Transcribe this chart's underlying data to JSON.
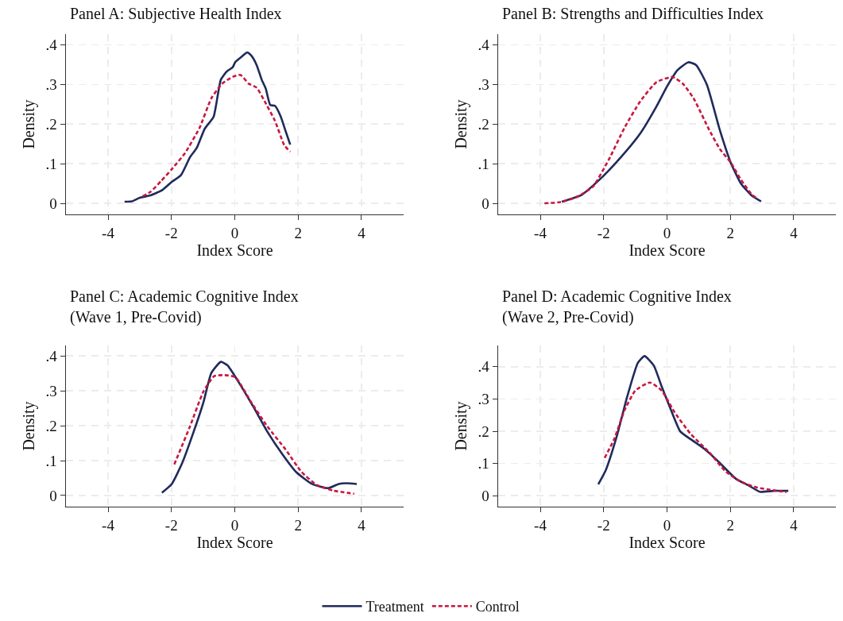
{
  "chart_data": [
    {
      "type": "line",
      "title": "Panel A: Subjective Health Index",
      "xlabel": "Index Score",
      "ylabel": "Density",
      "xlim": [
        -5.33,
        5.33
      ],
      "ylim": [
        -0.028,
        0.427
      ],
      "xticks": [
        -4,
        -2,
        0,
        2,
        4
      ],
      "yticks": [
        {
          "value": 0,
          "label": "0"
        },
        {
          "value": 0.1,
          "label": ".1"
        },
        {
          "value": 0.2,
          "label": ".2"
        },
        {
          "value": 0.3,
          "label": ".3"
        },
        {
          "value": 0.4,
          "label": ".4"
        }
      ],
      "grid": true,
      "series": [
        {
          "color": "#1f2b5b",
          "line_style": "solid",
          "x": [
            -3.48,
            -3.25,
            -3.0,
            -2.66,
            -2.28,
            -1.99,
            -1.7,
            -1.41,
            -1.2,
            -0.95,
            -0.67,
            -0.59,
            -0.44,
            -0.25,
            -0.07,
            0.02,
            0.23,
            0.39,
            0.52,
            0.69,
            0.85,
            0.98,
            1.12,
            1.27,
            1.44,
            1.61,
            1.75
          ],
          "values": [
            0.004,
            0.005,
            0.014,
            0.02,
            0.034,
            0.054,
            0.071,
            0.117,
            0.14,
            0.188,
            0.218,
            0.248,
            0.312,
            0.333,
            0.343,
            0.357,
            0.371,
            0.381,
            0.373,
            0.349,
            0.312,
            0.289,
            0.248,
            0.246,
            0.221,
            0.181,
            0.148
          ]
        },
        {
          "color": "#c8173f",
          "line_style": "dashed",
          "x": [
            -2.91,
            -2.66,
            -2.33,
            -1.99,
            -1.57,
            -1.11,
            -0.74,
            -0.4,
            -0.07,
            0.18,
            0.44,
            0.69,
            0.94,
            1.27,
            1.56,
            1.75
          ],
          "values": [
            0.018,
            0.029,
            0.056,
            0.086,
            0.127,
            0.191,
            0.265,
            0.302,
            0.319,
            0.324,
            0.302,
            0.292,
            0.258,
            0.208,
            0.147,
            0.13
          ]
        }
      ]
    },
    {
      "type": "line",
      "title": "Panel B: Strengths and Difficulties Index",
      "xlabel": "Index Score",
      "ylabel": "Density",
      "xlim": [
        -5.33,
        5.33
      ],
      "ylim": [
        -0.028,
        0.427
      ],
      "xticks": [
        -4,
        -2,
        0,
        2,
        4
      ],
      "yticks": [
        {
          "value": 0,
          "label": "0"
        },
        {
          "value": 0.1,
          "label": ".1"
        },
        {
          "value": 0.2,
          "label": ".2"
        },
        {
          "value": 0.3,
          "label": ".3"
        },
        {
          "value": 0.4,
          "label": ".4"
        }
      ],
      "grid": true,
      "series": [
        {
          "color": "#1f2b5b",
          "line_style": "solid",
          "x": [
            -3.32,
            -2.68,
            -2.01,
            -1.34,
            -0.84,
            -0.33,
            0,
            0.33,
            0.67,
            0.92,
            1.26,
            1.67,
            2.01,
            2.34,
            2.68,
            2.97
          ],
          "values": [
            0.004,
            0.022,
            0.069,
            0.127,
            0.177,
            0.245,
            0.295,
            0.336,
            0.356,
            0.349,
            0.299,
            0.184,
            0.103,
            0.049,
            0.019,
            0.005
          ]
        },
        {
          "color": "#c8173f",
          "line_style": "dashed",
          "x": [
            -3.87,
            -3.37,
            -2.85,
            -2.34,
            -1.84,
            -1.34,
            -0.84,
            -0.33,
            0.17,
            0.5,
            0.84,
            1.34,
            1.67,
            2.01,
            2.34,
            2.68,
            2.85
          ],
          "values": [
            0.0,
            0.003,
            0.016,
            0.042,
            0.11,
            0.191,
            0.258,
            0.306,
            0.319,
            0.302,
            0.265,
            0.184,
            0.137,
            0.103,
            0.059,
            0.022,
            0.012
          ]
        }
      ]
    },
    {
      "type": "line",
      "title": "Panel C: Academic Cognitive Index\n(Wave 1, Pre-Covid)",
      "xlabel": "Index Score",
      "ylabel": "Density",
      "xlim": [
        -5.33,
        5.33
      ],
      "ylim": [
        -0.032,
        0.43
      ],
      "xticks": [
        -4,
        -2,
        0,
        2,
        4
      ],
      "yticks": [
        {
          "value": 0,
          "label": "0"
        },
        {
          "value": 0.1,
          "label": ".1"
        },
        {
          "value": 0.2,
          "label": ".2"
        },
        {
          "value": 0.3,
          "label": ".3"
        },
        {
          "value": 0.4,
          "label": ".4"
        }
      ],
      "grid": true,
      "legend": "bottom",
      "series": [
        {
          "name": "Treatment",
          "color": "#1f2b5b",
          "line_style": "solid",
          "x": [
            -2.3,
            -1.99,
            -1.66,
            -1.32,
            -0.99,
            -0.74,
            -0.44,
            -0.23,
            0.1,
            0.6,
            1.02,
            1.52,
            1.94,
            2.44,
            2.95,
            3.28,
            3.53,
            3.85
          ],
          "values": [
            0.008,
            0.033,
            0.093,
            0.177,
            0.267,
            0.351,
            0.383,
            0.373,
            0.328,
            0.252,
            0.184,
            0.116,
            0.067,
            0.033,
            0.021,
            0.033,
            0.035,
            0.033
          ]
        },
        {
          "name": "Control",
          "color": "#c8173f",
          "line_style": "dashed",
          "x": [
            -1.91,
            -1.41,
            -0.99,
            -0.65,
            -0.32,
            0.02,
            0.52,
            1.02,
            1.61,
            2.11,
            2.61,
            3.11,
            3.77
          ],
          "values": [
            0.089,
            0.199,
            0.298,
            0.342,
            0.345,
            0.339,
            0.267,
            0.199,
            0.131,
            0.067,
            0.029,
            0.014,
            0.005
          ]
        }
      ]
    },
    {
      "type": "line",
      "title": "Panel D: Academic Cognitive Index\n(Wave 2, Pre-Covid)",
      "xlabel": "Index Score",
      "ylabel": "Density",
      "xlim": [
        -5.33,
        5.33
      ],
      "ylim": [
        -0.034,
        0.466
      ],
      "xticks": [
        -4,
        -2,
        0,
        2,
        4
      ],
      "yticks": [
        {
          "value": 0,
          "label": "0"
        },
        {
          "value": 0.1,
          "label": ".1"
        },
        {
          "value": 0.2,
          "label": ".2"
        },
        {
          "value": 0.3,
          "label": ".3"
        },
        {
          "value": 0.4,
          "label": ".4"
        }
      ],
      "grid": true,
      "series": [
        {
          "color": "#1f2b5b",
          "line_style": "solid",
          "x": [
            -2.17,
            -1.93,
            -1.59,
            -1.26,
            -0.92,
            -0.71,
            -0.42,
            -0.17,
            0.08,
            0.42,
            0.75,
            1.17,
            1.59,
            2.18,
            2.59,
            2.93,
            3.35,
            3.83
          ],
          "values": [
            0.035,
            0.08,
            0.183,
            0.306,
            0.412,
            0.433,
            0.404,
            0.339,
            0.277,
            0.199,
            0.175,
            0.146,
            0.109,
            0.052,
            0.031,
            0.012,
            0.015,
            0.015
          ]
        },
        {
          "color": "#c8173f",
          "line_style": "dashed",
          "x": [
            -1.97,
            -1.67,
            -1.34,
            -1.0,
            -0.54,
            -0.17,
            0.25,
            0.75,
            1.34,
            1.84,
            2.34,
            2.85,
            3.35,
            3.77
          ],
          "values": [
            0.117,
            0.175,
            0.265,
            0.326,
            0.351,
            0.326,
            0.257,
            0.191,
            0.134,
            0.076,
            0.043,
            0.025,
            0.017,
            0.011
          ]
        }
      ]
    }
  ]
}
